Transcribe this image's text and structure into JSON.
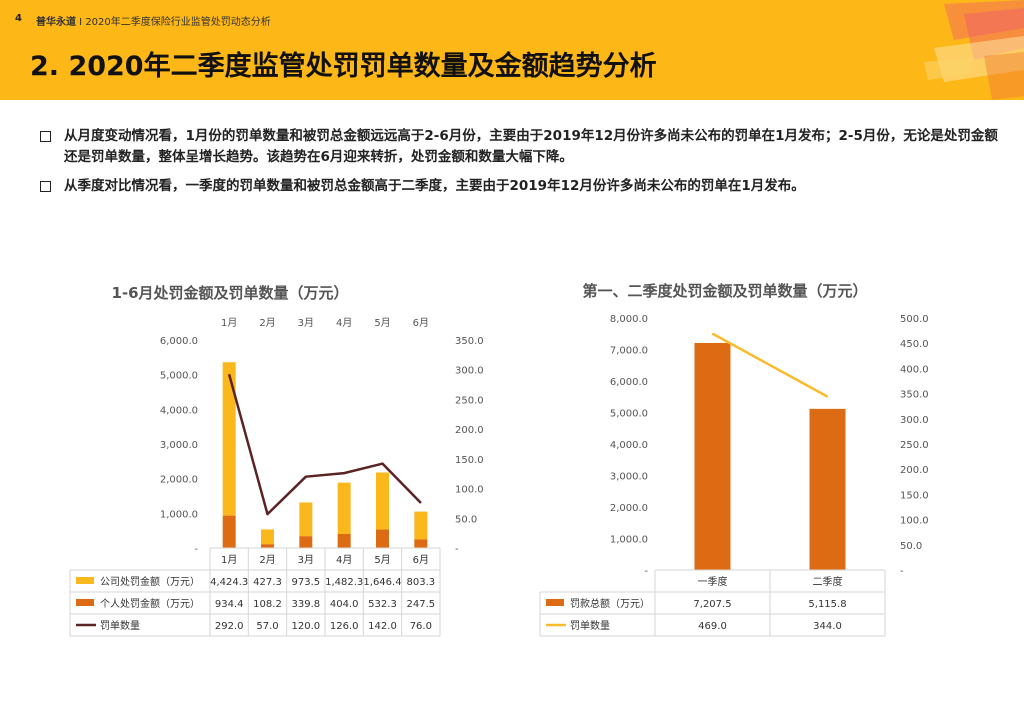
{
  "header": {
    "page_number": "4",
    "brand": "普华永道",
    "separator": " I ",
    "subtitle": "2020年二季度保险行业监管处罚动态分析",
    "title": "2. 2020年二季度监管处罚罚单数量及金额趋势分析"
  },
  "bullets": [
    "从月度变动情况看，1月份的罚单数量和被罚总金额远远高于2-6月份，主要由于2019年12月份许多尚未公布的罚单在1月发布；2-5月份，无论是处罚金额还是罚单数量，整体呈增长趋势。该趋势在6月迎来转折，处罚金额和数量大幅下降。",
    "从季度对比情况看，一季度的罚单数量和被罚总金额高于二季度，主要由于2019年12月份许多尚未公布的罚单在1月发布。"
  ],
  "colors": {
    "header_bg": "#fdb717",
    "company_fine": "#fbb81c",
    "personal_fine": "#dd6b13",
    "ticket_count_line": "#5b2323",
    "quarter_fine": "#dd6b13",
    "quarter_count_line": "#fbbb2b"
  },
  "chart_data": [
    {
      "type": "bar",
      "stacked": true,
      "title": "1-6月处罚金额及罚单数量（万元）",
      "categories": [
        "1月",
        "2月",
        "3月",
        "4月",
        "5月",
        "6月"
      ],
      "series": [
        {
          "name": "公司处罚金额（万元）",
          "type": "bar",
          "axis": "left",
          "values": [
            4424.3,
            427.3,
            973.5,
            1482.3,
            1646.4,
            803.3
          ],
          "labels": [
            "4,424.3",
            "427.3",
            "973.5",
            "1,482.3",
            "1,646.4",
            "803.3"
          ]
        },
        {
          "name": "个人处罚金额（万元）",
          "type": "bar",
          "axis": "left",
          "values": [
            934.4,
            108.2,
            339.8,
            404.0,
            532.3,
            247.5
          ],
          "labels": [
            "934.4",
            "108.2",
            "339.8",
            "404.0",
            "532.3",
            "247.5"
          ]
        },
        {
          "name": "罚单数量",
          "type": "line",
          "axis": "right",
          "values": [
            292.0,
            57.0,
            120.0,
            126.0,
            142.0,
            76.0
          ],
          "labels": [
            "292.0",
            "57.0",
            "120.0",
            "126.0",
            "142.0",
            "76.0"
          ]
        }
      ],
      "ylim_left": [
        0,
        6000
      ],
      "yticks_left": [
        "-",
        "1,000.0",
        "2,000.0",
        "3,000.0",
        "4,000.0",
        "5,000.0",
        "6,000.0"
      ],
      "ylim_right": [
        0,
        350
      ],
      "yticks_right": [
        "-",
        "50.0",
        "100.0",
        "150.0",
        "200.0",
        "250.0",
        "300.0",
        "350.0"
      ],
      "grid": false,
      "legend": "data-table"
    },
    {
      "type": "bar",
      "title": "第一、二季度处罚金额及罚单数量（万元）",
      "categories": [
        "一季度",
        "二季度"
      ],
      "series": [
        {
          "name": "罚款总额（万元）",
          "type": "bar",
          "axis": "left",
          "values": [
            7207.5,
            5115.8
          ],
          "labels": [
            "7,207.5",
            "5,115.8"
          ]
        },
        {
          "name": "罚单数量",
          "type": "line",
          "axis": "right",
          "values": [
            469.0,
            344.0
          ],
          "labels": [
            "469.0",
            "344.0"
          ]
        }
      ],
      "ylim_left": [
        0,
        8000
      ],
      "yticks_left": [
        "-",
        "1,000.0",
        "2,000.0",
        "3,000.0",
        "4,000.0",
        "5,000.0",
        "6,000.0",
        "7,000.0",
        "8,000.0"
      ],
      "ylim_right": [
        0,
        500
      ],
      "yticks_right": [
        "-",
        "50.0",
        "100.0",
        "150.0",
        "200.0",
        "250.0",
        "300.0",
        "350.0",
        "400.0",
        "450.0",
        "500.0"
      ],
      "grid": false,
      "legend": "data-table"
    }
  ]
}
